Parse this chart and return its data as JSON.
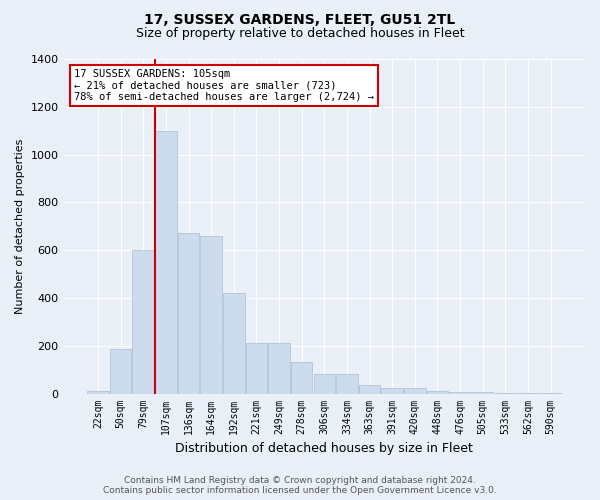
{
  "title": "17, SUSSEX GARDENS, FLEET, GU51 2TL",
  "subtitle": "Size of property relative to detached houses in Fleet",
  "xlabel": "Distribution of detached houses by size in Fleet",
  "ylabel": "Number of detached properties",
  "bar_labels": [
    "22sqm",
    "50sqm",
    "79sqm",
    "107sqm",
    "136sqm",
    "164sqm",
    "192sqm",
    "221sqm",
    "249sqm",
    "278sqm",
    "306sqm",
    "334sqm",
    "363sqm",
    "391sqm",
    "420sqm",
    "448sqm",
    "476sqm",
    "505sqm",
    "533sqm",
    "562sqm",
    "590sqm"
  ],
  "bar_values": [
    10,
    185,
    600,
    1100,
    670,
    660,
    420,
    210,
    210,
    130,
    80,
    80,
    35,
    25,
    25,
    10,
    5,
    5,
    2,
    1,
    1
  ],
  "bar_color": "#ccdcee",
  "bar_edgecolor": "#aabdce",
  "vline_x_index": 3,
  "vline_color": "#cc0000",
  "annotation_text": "17 SUSSEX GARDENS: 105sqm\n← 21% of detached houses are smaller (723)\n78% of semi-detached houses are larger (2,724) →",
  "annotation_box_edgecolor": "#cc0000",
  "ylim": [
    0,
    1400
  ],
  "yticks": [
    0,
    200,
    400,
    600,
    800,
    1000,
    1200,
    1400
  ],
  "footer": "Contains HM Land Registry data © Crown copyright and database right 2024.\nContains public sector information licensed under the Open Government Licence v3.0.",
  "bg_color": "#eaf0f8",
  "plot_bg_color": "#eaf0f8",
  "title_fontsize": 10,
  "subtitle_fontsize": 9
}
